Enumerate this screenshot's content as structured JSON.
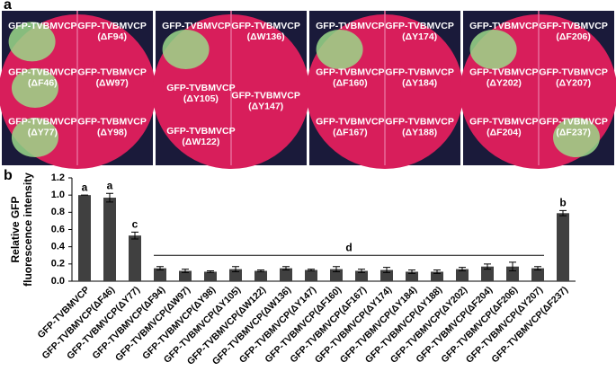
{
  "panel_labels": [
    "a",
    "b"
  ],
  "photos": [
    {
      "labels": [
        [
          "GFP-TVBMVCP"
        ],
        [
          "GFP-TVBMVCP",
          "(ΔF94)"
        ],
        [
          "GFP-TVBMVCP",
          "(ΔF46)"
        ],
        [
          "GFP-TVBMVCP",
          "(ΔW97)"
        ],
        [
          "GFP-TVBMVCP",
          "(ΔY77)"
        ],
        [
          "GFP-TVBMVCP",
          "(ΔY98)"
        ]
      ]
    },
    {
      "labels": [
        [
          "GFP-TVBMVCP"
        ],
        [
          "GFP-TVBMVCP",
          "(ΔW136)"
        ],
        [
          "GFP-TVBMVCP",
          "(ΔY105)"
        ],
        [
          "GFP-TVBMVCP",
          "(ΔY147)"
        ],
        [
          "GFP-TVBMVCP",
          "(ΔW122)"
        ]
      ]
    },
    {
      "labels": [
        [
          "GFP-TVBMVCP"
        ],
        [
          "GFP-TVBMVCP",
          "(ΔY174)"
        ],
        [
          "GFP-TVBMVCP",
          "(ΔF160)"
        ],
        [
          "GFP-TVBMVCP",
          "(ΔY184)"
        ],
        [
          "GFP-TVBMVCP",
          "(ΔF167)"
        ],
        [
          "GFP-TVBMVCP",
          "(ΔY188)"
        ]
      ]
    },
    {
      "labels": [
        [
          "GFP-TVBMVCP"
        ],
        [
          "GFP-TVBMVCP",
          "(ΔF206)"
        ],
        [
          "GFP-TVBMVCP",
          "(ΔY202)"
        ],
        [
          "GFP-TVBMVCP",
          "(ΔY207)"
        ],
        [
          "GFP-TVBMVCP",
          "(ΔF204)"
        ],
        [
          "GFP-TVBMVCP",
          "(ΔF237)"
        ]
      ]
    }
  ],
  "chart_data": {
    "type": "bar",
    "y_label": [
      "Relative GFP",
      "fluorescence intensity"
    ],
    "categories": [
      "GFP-TVBMVCP",
      "GFP-TVBMVCP(ΔF46)",
      "GFP-TVBMVCP(ΔY77)",
      "GFP-TVBMVCP(ΔF94)",
      "GFP-TVBMVCP(ΔW97)",
      "GFP-TVBMVCP(ΔY98)",
      "GFP-TVBMVCP(ΔY105)",
      "GFP-TVBMVCP(ΔW122)",
      "GFP-TVBMVCP(ΔW136)",
      "GFP-TVBMVCP(ΔY147)",
      "GFP-TVBMVCP(ΔF160)",
      "GFP-TVBMVCP(ΔF167)",
      "GFP-TVBMVCP(ΔY174)",
      "GFP-TVBMVCP(ΔY184)",
      "GFP-TVBMVCP(ΔY188)",
      "GFP-TVBMVCP(ΔY202)",
      "GFP-TVBMVCP(ΔF204)",
      "GFP-TVBMVCP(ΔF206)",
      "GFP-TVBMVCP(ΔY207)",
      "GFP-TVBMVCP(ΔF237)"
    ],
    "values": [
      1.0,
      0.97,
      0.53,
      0.15,
      0.12,
      0.11,
      0.14,
      0.12,
      0.15,
      0.13,
      0.14,
      0.12,
      0.13,
      0.11,
      0.11,
      0.14,
      0.17,
      0.17,
      0.15,
      0.79
    ],
    "errors": [
      0,
      0.05,
      0.04,
      0.02,
      0.02,
      0.01,
      0.03,
      0.01,
      0.02,
      0.01,
      0.03,
      0.02,
      0.03,
      0.02,
      0.02,
      0.02,
      0.03,
      0.05,
      0.02,
      0.03
    ],
    "color": "#404040",
    "annotations": [
      "a",
      "a",
      "c",
      "d",
      "b"
    ],
    "ylim": [
      0,
      1.2
    ],
    "yticks": [
      {
        "value": 0,
        "label": "0.0"
      },
      0.2,
      0.4,
      0.6,
      0.8,
      {
        "value": 1,
        "label": "1.0"
      },
      1.2
    ]
  }
}
